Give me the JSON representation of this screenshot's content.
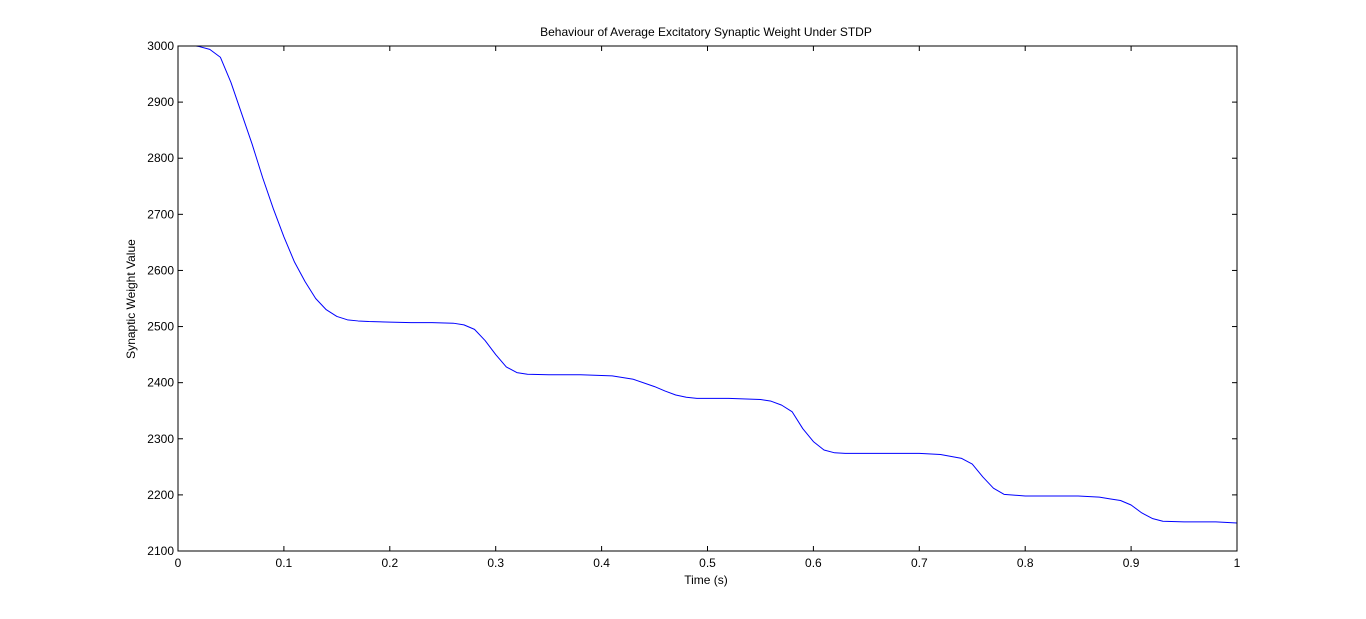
{
  "chart_data": {
    "type": "line",
    "title": "Behaviour of Average Excitatory Synaptic Weight Under STDP",
    "xlabel": "Time (s)",
    "ylabel": "Synaptic Weight Value",
    "xlim": [
      0,
      1
    ],
    "ylim": [
      2100,
      3000
    ],
    "xticks": [
      0,
      0.1,
      0.2,
      0.3,
      0.4,
      0.5,
      0.6,
      0.7,
      0.8,
      0.9,
      1
    ],
    "xtick_labels": [
      "0",
      "0.1",
      "0.2",
      "0.3",
      "0.4",
      "0.5",
      "0.6",
      "0.7",
      "0.8",
      "0.9",
      "1"
    ],
    "yticks": [
      2100,
      2200,
      2300,
      2400,
      2500,
      2600,
      2700,
      2800,
      2900,
      3000
    ],
    "ytick_labels": [
      "2100",
      "2200",
      "2300",
      "2400",
      "2500",
      "2600",
      "2700",
      "2800",
      "2900",
      "3000"
    ],
    "grid": false,
    "legend": "none",
    "series": [
      {
        "color": "#0000ff",
        "x": [
          0.017,
          0.02,
          0.03,
          0.04,
          0.05,
          0.06,
          0.07,
          0.08,
          0.09,
          0.1,
          0.11,
          0.12,
          0.13,
          0.14,
          0.15,
          0.16,
          0.17,
          0.18,
          0.2,
          0.22,
          0.24,
          0.26,
          0.27,
          0.28,
          0.29,
          0.3,
          0.31,
          0.32,
          0.33,
          0.35,
          0.38,
          0.41,
          0.43,
          0.45,
          0.46,
          0.47,
          0.48,
          0.49,
          0.5,
          0.52,
          0.55,
          0.56,
          0.57,
          0.58,
          0.59,
          0.6,
          0.61,
          0.62,
          0.63,
          0.65,
          0.7,
          0.72,
          0.74,
          0.75,
          0.76,
          0.77,
          0.78,
          0.8,
          0.85,
          0.87,
          0.88,
          0.89,
          0.9,
          0.91,
          0.92,
          0.93,
          0.95,
          0.98,
          1.0
        ],
        "y": [
          3000,
          2999,
          2994,
          2980,
          2935,
          2880,
          2825,
          2765,
          2710,
          2660,
          2615,
          2580,
          2550,
          2530,
          2518,
          2512,
          2510,
          2509,
          2508,
          2507,
          2507,
          2506,
          2503,
          2495,
          2475,
          2450,
          2428,
          2418,
          2415,
          2414,
          2414,
          2412,
          2406,
          2393,
          2385,
          2378,
          2374,
          2372,
          2372,
          2372,
          2370,
          2367,
          2360,
          2348,
          2318,
          2295,
          2280,
          2275,
          2274,
          2274,
          2274,
          2272,
          2265,
          2255,
          2232,
          2212,
          2201,
          2198,
          2198,
          2196,
          2193,
          2190,
          2182,
          2168,
          2158,
          2153,
          2152,
          2152,
          2150
        ]
      }
    ]
  }
}
